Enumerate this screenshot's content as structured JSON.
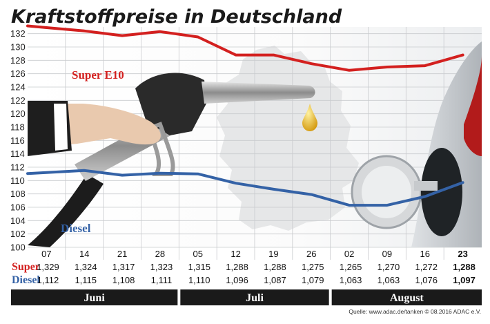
{
  "chart_data": {
    "type": "line",
    "title": "Kraftstoffpreise in Deutschland",
    "categories": [
      "07",
      "14",
      "21",
      "28",
      "05",
      "12",
      "19",
      "26",
      "02",
      "09",
      "16",
      "23"
    ],
    "months": [
      {
        "label": "Juni",
        "weeks": 4
      },
      {
        "label": "Juli",
        "weeks": 4
      },
      {
        "label": "August",
        "weeks": 4
      }
    ],
    "series": [
      {
        "name": "Super E10",
        "row_label": "Super",
        "color": "#d3201f",
        "values": [
          132.9,
          132.4,
          131.7,
          132.3,
          131.5,
          128.8,
          128.8,
          127.5,
          126.5,
          127.0,
          127.2,
          128.8
        ],
        "value_labels": [
          "1,329",
          "1,324",
          "1,317",
          "1,323",
          "1,315",
          "1,288",
          "1,288",
          "1,275",
          "1,265",
          "1,270",
          "1,272",
          "1,288"
        ]
      },
      {
        "name": "Diesel",
        "row_label": "Diesel",
        "color": "#3462a6",
        "values": [
          111.2,
          111.5,
          110.8,
          111.1,
          111.0,
          109.6,
          108.7,
          107.9,
          106.3,
          106.3,
          107.6,
          109.7
        ],
        "value_labels": [
          "1,112",
          "1,115",
          "1,108",
          "1,111",
          "1,110",
          "1,096",
          "1,087",
          "1,079",
          "1,063",
          "1,063",
          "1,076",
          "1,097"
        ]
      }
    ],
    "ylim": [
      100,
      133
    ],
    "yticks": [
      100,
      102,
      104,
      106,
      108,
      110,
      112,
      114,
      116,
      118,
      120,
      122,
      124,
      126,
      128,
      130,
      132
    ],
    "grid": true,
    "source": "Quelle: www.adac.de/tanken  © 08.2016  ADAC e.V.",
    "highlight_color": "#d3201f"
  }
}
